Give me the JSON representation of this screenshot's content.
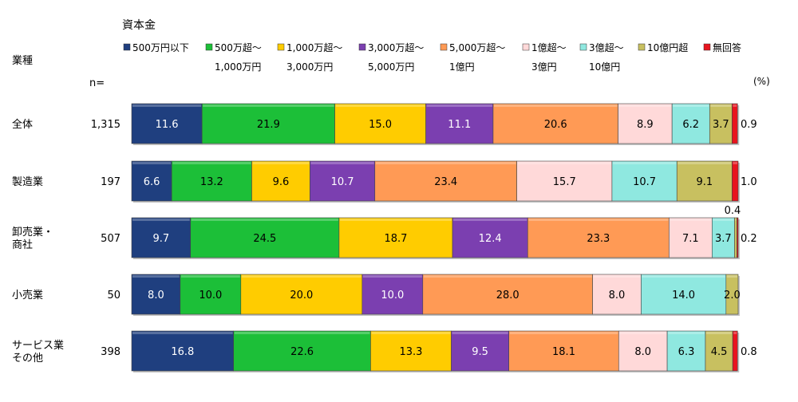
{
  "chart_data": {
    "type": "bar",
    "orientation": "horizontal",
    "stacked": "percent",
    "title": "資本金",
    "category_header": "業種",
    "n_header": "n=",
    "unit_label": "(%)",
    "xlim": [
      0,
      100
    ],
    "grid": false,
    "legend_position": "top",
    "categories": [
      "全体",
      "製造業",
      "卸売業・\n商社",
      "小売業",
      "サービス業\nその他"
    ],
    "n_values": [
      "1,315",
      "197",
      "507",
      "50",
      "398"
    ],
    "series": [
      {
        "name": "500万円以下",
        "color": "#1f3f7f",
        "values": [
          11.6,
          6.6,
          9.7,
          8.0,
          16.8
        ]
      },
      {
        "name": "500万超～\n1,000万円",
        "color": "#1cbf38",
        "values": [
          21.9,
          13.2,
          24.5,
          10.0,
          22.6
        ]
      },
      {
        "name": "1,000万超～\n3,000万円",
        "color": "#ffcc00",
        "values": [
          15.0,
          9.6,
          18.7,
          20.0,
          13.3
        ]
      },
      {
        "name": "3,000万超～\n5,000万円",
        "color": "#7b3fb0",
        "values": [
          11.1,
          10.7,
          12.4,
          10.0,
          9.5
        ]
      },
      {
        "name": "5,000万超～\n1億円",
        "color": "#ff9a55",
        "values": [
          20.6,
          23.4,
          23.3,
          28.0,
          18.1
        ]
      },
      {
        "name": "1億超～\n3億円",
        "color": "#ffd9d9",
        "values": [
          8.9,
          15.7,
          7.1,
          8.0,
          8.0
        ]
      },
      {
        "name": "3億超～\n10億円",
        "color": "#8fe8e0",
        "values": [
          6.2,
          10.7,
          3.7,
          14.0,
          6.3
        ]
      },
      {
        "name": "10億円超",
        "color": "#c8c060",
        "values": [
          3.7,
          9.1,
          0.4,
          2.0,
          4.5
        ]
      },
      {
        "name": "無回答",
        "color": "#e8141e",
        "values": [
          0.9,
          1.0,
          0.2,
          0.0,
          0.8
        ]
      }
    ],
    "labels": [
      [
        "11.6",
        "21.9",
        "15.0",
        "11.1",
        "20.6",
        "8.9",
        "6.2",
        "3.7",
        "0.9"
      ],
      [
        "6.6",
        "13.2",
        "9.6",
        "10.7",
        "23.4",
        "15.7",
        "10.7",
        "9.1",
        "1.0"
      ],
      [
        "9.7",
        "24.5",
        "18.7",
        "12.4",
        "23.3",
        "7.1",
        "3.7",
        "0.4",
        "0.2"
      ],
      [
        "8.0",
        "10.0",
        "20.0",
        "10.0",
        "28.0",
        "8.0",
        "14.0",
        "2.0",
        ""
      ],
      [
        "16.8",
        "22.6",
        "13.3",
        "9.5",
        "18.1",
        "8.0",
        "6.3",
        "4.5",
        "0.8"
      ]
    ]
  }
}
